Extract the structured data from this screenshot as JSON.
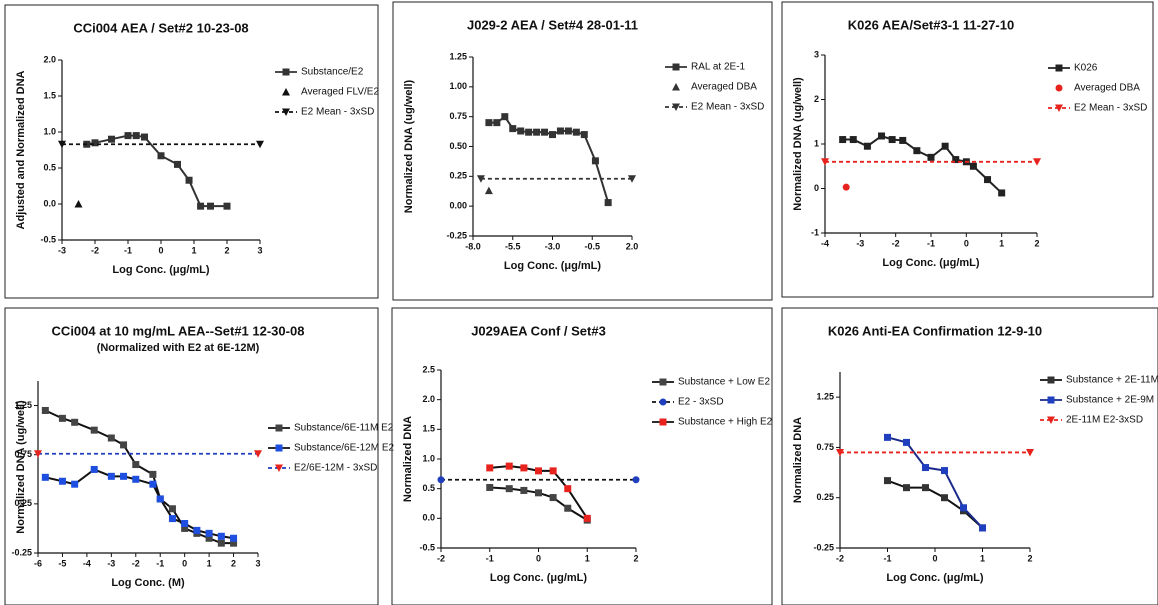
{
  "chart_data": [
    {
      "type": "line",
      "title": "CCi004 AEA / Set#2 10-23-08",
      "x_label": "Log Conc. (μg/mL)",
      "y_label": "Adjusted and Normalized DNA",
      "xlim": [
        -3,
        3
      ],
      "xticks": [
        -3,
        -2,
        -1,
        0,
        1,
        2,
        3
      ],
      "ylim": [
        -0.5,
        2.0
      ],
      "yticks": [
        -0.5,
        {
          "value": 0,
          "label": "0.0"
        },
        0.5,
        {
          "value": 1,
          "label": "1.0"
        },
        1.5,
        {
          "value": 2,
          "label": "2.0"
        }
      ],
      "series": [
        {
          "name": "Substance/E2",
          "color": "#333333",
          "marker": "square",
          "line": "solid",
          "x": [
            -2.25,
            -2,
            -1.5,
            -1,
            -0.75,
            -0.5,
            0,
            0.5,
            0.85,
            1.2,
            1.5,
            2
          ],
          "values": [
            0.83,
            0.85,
            0.9,
            0.95,
            0.95,
            0.93,
            0.67,
            0.55,
            0.33,
            -0.03,
            -0.03,
            -0.03
          ]
        },
        {
          "name": "Averaged FLV/E2",
          "color": "#111111",
          "marker": "triangle",
          "line": "none",
          "x": [
            -2.5
          ],
          "values": [
            0.0
          ]
        },
        {
          "name": "E2 Mean - 3xSD",
          "color": "#111111",
          "marker": "triangle-down",
          "line": "dashed",
          "x": [
            -3,
            3
          ],
          "values": [
            0.83,
            0.83
          ]
        }
      ]
    },
    {
      "type": "line",
      "title": "J029-2 AEA / Set#4 28-01-11",
      "x_label": "Log Conc. (μg/mL)",
      "y_label": "Normalized DNA (ug/well)",
      "xlim": [
        -8,
        2
      ],
      "xticks": [
        {
          "value": -8,
          "label": "-8.0"
        },
        -5.5,
        {
          "value": -3,
          "label": "-3.0"
        },
        -0.5,
        {
          "value": 2,
          "label": "2.0"
        }
      ],
      "ylim": [
        -0.25,
        1.25
      ],
      "yticks": [
        -0.25,
        {
          "value": 0,
          "label": "0.00"
        },
        0.25,
        {
          "value": 0.5,
          "label": "0.50"
        },
        0.75,
        {
          "value": 1,
          "label": "1.00"
        },
        1.25
      ],
      "series": [
        {
          "name": "RAL at 2E-1",
          "color": "#333333",
          "marker": "square",
          "line": "solid",
          "x": [
            -7,
            -6.5,
            -6,
            -5.5,
            -5,
            -4.5,
            -4,
            -3.5,
            -3,
            -2.5,
            -2,
            -1.5,
            -1,
            -0.3,
            0.5
          ],
          "values": [
            0.7,
            0.7,
            0.75,
            0.65,
            0.63,
            0.62,
            0.62,
            0.62,
            0.6,
            0.63,
            0.63,
            0.62,
            0.6,
            0.38,
            0.03
          ]
        },
        {
          "name": "Averaged DBA",
          "color": "#333333",
          "marker": "triangle",
          "line": "none",
          "x": [
            -7
          ],
          "values": [
            0.13
          ]
        },
        {
          "name": "E2 Mean - 3xSD",
          "color": "#333333",
          "marker": "triangle-down",
          "line": "dashed",
          "x": [
            -7.5,
            2
          ],
          "values": [
            0.23,
            0.23
          ]
        }
      ]
    },
    {
      "type": "line",
      "title": "K026 AEA/Set#3-1 11-27-10",
      "x_label": "Log Conc. (μg/mL)",
      "y_label": "Normalized DNA (ug/well)",
      "xlim": [
        -4,
        2
      ],
      "xticks": [
        -4,
        -3,
        -2,
        -1,
        0,
        1,
        2
      ],
      "ylim": [
        -1,
        3
      ],
      "yticks": [
        -1,
        0,
        1,
        2,
        3
      ],
      "series": [
        {
          "name": "K026",
          "color": "#222222",
          "marker": "square",
          "line": "solid",
          "x": [
            -3.5,
            -3.2,
            -2.8,
            -2.4,
            -2.1,
            -1.8,
            -1.4,
            -1,
            -0.6,
            -0.3,
            0,
            0.2,
            0.6,
            1
          ],
          "values": [
            1.1,
            1.1,
            0.95,
            1.18,
            1.1,
            1.08,
            0.85,
            0.7,
            0.95,
            0.65,
            0.6,
            0.5,
            0.2,
            -0.1
          ]
        },
        {
          "name": "Averaged DBA",
          "color": "#e8231e",
          "marker": "circle",
          "line": "none",
          "x": [
            -3.4
          ],
          "values": [
            0.03
          ]
        },
        {
          "name": "E2 Mean - 3xSD",
          "color": "#e8231e",
          "marker": "triangle-down",
          "line": "dashed",
          "x": [
            -4,
            2
          ],
          "values": [
            0.6,
            0.6
          ]
        }
      ]
    },
    {
      "type": "line",
      "title": "CCi004 at 10 mg/mL AEA--Set#1 12-30-08",
      "subtitle": "(Normalized with E2 at 6E-12M)",
      "x_label": "Log Conc. (M)",
      "y_label": "Normalized DNA (ug/well)",
      "xlim": [
        -6,
        3
      ],
      "xticks": [
        -6,
        -5,
        -4,
        -3,
        -2,
        -1,
        0,
        1,
        2,
        3
      ],
      "ylim": [
        -0.25,
        1.5
      ],
      "yticks": [
        -0.25,
        0.25,
        0.75,
        1.25
      ],
      "series": [
        {
          "name": "Substance/6E-11M E2",
          "color": "#444444",
          "marker": "square",
          "line": "solid",
          "line_color": "#111111",
          "x": [
            -5.7,
            -5,
            -4.5,
            -3.7,
            -3,
            -2.5,
            -2,
            -1.3,
            -1,
            -0.5,
            0,
            0.5,
            1,
            1.5,
            2
          ],
          "values": [
            1.2,
            1.12,
            1.08,
            1.0,
            0.92,
            0.85,
            0.65,
            0.55,
            0.3,
            0.2,
            0.0,
            -0.05,
            -0.1,
            -0.15,
            -0.15
          ]
        },
        {
          "name": "Substance/6E-12M E2",
          "color": "#1f4fe0",
          "marker": "square",
          "line": "solid",
          "line_color": "#111111",
          "x": [
            -5.7,
            -5,
            -4.5,
            -3.7,
            -3,
            -2.5,
            -2,
            -1.3,
            -1,
            -0.5,
            0,
            0.5,
            1,
            1.5,
            2
          ],
          "values": [
            0.52,
            0.48,
            0.45,
            0.6,
            0.53,
            0.53,
            0.5,
            0.45,
            0.3,
            0.1,
            0.05,
            -0.02,
            -0.05,
            -0.08,
            -0.1
          ]
        },
        {
          "name": "E2/6E-12M - 3xSD",
          "color": "#e8231e",
          "marker": "triangle-down",
          "line": "dashed",
          "line_color": "#1f3fbf",
          "x": [
            -6,
            3
          ],
          "values": [
            0.76,
            0.76
          ]
        }
      ]
    },
    {
      "type": "line",
      "title": "J029AEA Conf / Set#3",
      "x_label": "Log Conc. (μg/mL)",
      "y_label": "Normalized DNA",
      "xlim": [
        -2,
        2
      ],
      "xticks": [
        -2,
        -1,
        0,
        1,
        2
      ],
      "ylim": [
        -0.5,
        2.5
      ],
      "yticks": [
        -0.5,
        {
          "value": 0,
          "label": "0.0"
        },
        0.5,
        {
          "value": 1,
          "label": "1.0"
        },
        1.5,
        {
          "value": 2,
          "label": "2.0"
        },
        2.5
      ],
      "series": [
        {
          "name": "Substance + Low E2",
          "color": "#444444",
          "marker": "square",
          "line": "solid",
          "line_color": "#111111",
          "x": [
            -1,
            -0.6,
            -0.3,
            0,
            0.3,
            0.6,
            1
          ],
          "values": [
            0.52,
            0.5,
            0.47,
            0.43,
            0.35,
            0.17,
            -0.03
          ]
        },
        {
          "name": "E2 - 3xSD",
          "color": "#1f3fbf",
          "marker": "circle",
          "line": "dashed",
          "line_color": "#111111",
          "x": [
            -2,
            2
          ],
          "values": [
            0.65,
            0.65
          ]
        },
        {
          "name": "Substance + High E2",
          "color": "#e8231e",
          "marker": "square",
          "line": "solid",
          "line_color": "#111111",
          "x": [
            -1,
            -0.6,
            -0.3,
            0,
            0.3,
            0.6,
            1
          ],
          "values": [
            0.85,
            0.88,
            0.85,
            0.8,
            0.8,
            0.5,
            0.0
          ]
        }
      ]
    },
    {
      "type": "line",
      "title": "K026 Anti-EA Confirmation 12-9-10",
      "x_label": "Log Conc. (μg/mL)",
      "y_label": "Normalized DNA",
      "xlim": [
        -2,
        2
      ],
      "xticks": [
        -2,
        -1,
        0,
        1,
        2
      ],
      "ylim": [
        -0.25,
        1.5
      ],
      "yticks": [
        -0.25,
        0.25,
        0.75,
        1.25
      ],
      "series": [
        {
          "name": "Substance + 2E-11M E2",
          "color": "#333333",
          "marker": "square",
          "line": "solid",
          "line_color": "#111111",
          "x": [
            -1,
            -0.6,
            -0.2,
            0.2,
            0.6,
            1
          ],
          "values": [
            0.42,
            0.35,
            0.35,
            0.25,
            0.12,
            -0.05
          ]
        },
        {
          "name": "Substance + 2E-9M E2",
          "color": "#1f3fbf",
          "marker": "square",
          "line": "solid",
          "line_color": "#1a2a8a",
          "x": [
            -1,
            -0.6,
            -0.2,
            0.2,
            0.6,
            1
          ],
          "values": [
            0.85,
            0.8,
            0.55,
            0.52,
            0.15,
            -0.05
          ]
        },
        {
          "name": "2E-11M E2-3xSD",
          "color": "#e8231e",
          "marker": "triangle-down",
          "line": "dashed",
          "x": [
            -2,
            2
          ],
          "values": [
            0.7,
            0.7
          ]
        }
      ]
    }
  ]
}
